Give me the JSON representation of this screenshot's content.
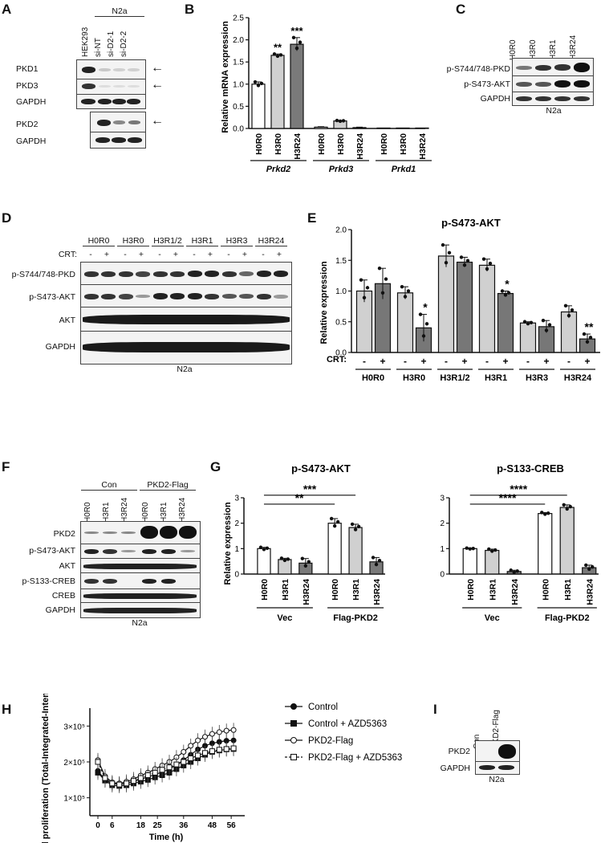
{
  "panels": {
    "A": {
      "label": "A",
      "group_header": "N2a",
      "lanes": [
        "HEK293",
        "si-NT",
        "si-D2-1",
        "si-D2-2"
      ],
      "rows": [
        "PKD1",
        "PKD3",
        "GAPDH",
        "PKD2",
        "GAPDH"
      ],
      "arrow": "←"
    },
    "B": {
      "label": "B",
      "ylabel": "Relative mRNA expression"
    },
    "C": {
      "label": "C",
      "lanes": [
        "H0R0",
        "H3R0",
        "H3R1",
        "H3R24"
      ],
      "rows": [
        "p-S744/748-PKD",
        "p-S473-AKT",
        "GAPDH"
      ],
      "caption": "N2a"
    },
    "D": {
      "label": "D",
      "lanes": [
        "H0R0",
        "H3R0",
        "H3R1/2",
        "H3R1",
        "H3R3",
        "H3R24"
      ],
      "crt_label": "CRT:",
      "signs": [
        "-",
        "+"
      ],
      "rows": [
        "p-S744/748-PKD",
        "p-S473-AKT",
        "AKT",
        "GAPDH"
      ],
      "caption": "N2a"
    },
    "E": {
      "label": "E",
      "title": "p-S473-AKT",
      "ylabel": "Relative expression",
      "crt_label": "CRT:"
    },
    "F": {
      "label": "F",
      "groups": [
        "Con",
        "PKD2-Flag"
      ],
      "lanes": [
        "H0R0",
        "H3R1",
        "H3R24",
        "H0R0",
        "H3R1",
        "H3R24"
      ],
      "rows": [
        "PKD2",
        "p-S473-AKT",
        "AKT",
        "p-S133-CREB",
        "CREB",
        "GAPDH"
      ],
      "caption": "N2a"
    },
    "G": {
      "label": "G",
      "ylabel": "Relative expression"
    },
    "H": {
      "label": "H",
      "ylabel": "Cell proliferation (Total-Integrated-Intensity)",
      "xlabel": "Time (h)"
    },
    "I": {
      "label": "I",
      "lanes": [
        "Con",
        "PKD2-Flag"
      ],
      "rows": [
        "PKD2",
        "GAPDH"
      ],
      "caption": "N2a"
    }
  },
  "chart_data": [
    {
      "panel": "B",
      "type": "bar",
      "ylabel": "Relative mRNA expression",
      "ylim": [
        0,
        2.5
      ],
      "yticks": [
        0.0,
        0.5,
        1.0,
        1.5,
        2.0,
        2.5
      ],
      "groups": [
        "Prkd2",
        "Prkd3",
        "Prkd1"
      ],
      "categories": [
        "H0R0",
        "H3R0",
        "H3R24",
        "H0R0",
        "H3R0",
        "H3R24",
        "H0R0",
        "H3R0",
        "H3R24"
      ],
      "values": [
        1.0,
        1.65,
        1.9,
        0.03,
        0.17,
        0.02,
        0.01,
        0.01,
        0.01
      ],
      "errors": [
        0.05,
        0.03,
        0.15,
        0.01,
        0.01,
        0.01,
        0.0,
        0.0,
        0.0
      ],
      "fills": [
        "#ffffff",
        "#d0d0d0",
        "#7a7a7a",
        "#ffffff",
        "#d0d0d0",
        "#7a7a7a",
        "#ffffff",
        "#d0d0d0",
        "#7a7a7a"
      ],
      "significance": [
        "",
        "**",
        "***",
        "",
        "",
        "",
        "",
        "",
        ""
      ]
    },
    {
      "panel": "E",
      "type": "bar",
      "title": "p-S473-AKT",
      "ylabel": "Relative expression",
      "ylim": [
        0,
        2.0
      ],
      "yticks": [
        0.0,
        0.5,
        1.0,
        1.5,
        2.0
      ],
      "groups": [
        "H0R0",
        "H3R0",
        "H3R1/2",
        "H3R1",
        "H3R3",
        "H3R24"
      ],
      "crt": [
        "-",
        "+"
      ],
      "values": [
        1.0,
        1.12,
        0.97,
        0.4,
        1.57,
        1.47,
        1.42,
        0.96,
        0.48,
        0.42,
        0.66,
        0.22
      ],
      "errors": [
        0.18,
        0.25,
        0.1,
        0.22,
        0.18,
        0.08,
        0.1,
        0.04,
        0.02,
        0.1,
        0.1,
        0.08
      ],
      "significance": [
        "",
        "",
        "",
        "*",
        "",
        "",
        "",
        "*",
        "",
        "",
        "",
        "**"
      ]
    },
    {
      "panel": "G1",
      "type": "bar",
      "title": "p-S473-AKT",
      "ylabel": "Relative expression",
      "ylim": [
        0,
        3
      ],
      "yticks": [
        0,
        1,
        2,
        3
      ],
      "categories": [
        "H0R0",
        "H3R1",
        "H3R24",
        "H0R0",
        "H3R1",
        "H3R24"
      ],
      "groups": [
        "Vec",
        "Flag-PKD2"
      ],
      "values": [
        1.0,
        0.57,
        0.43,
        2.0,
        1.83,
        0.48
      ],
      "errors": [
        0.05,
        0.05,
        0.18,
        0.18,
        0.13,
        0.17
      ],
      "fills": [
        "#ffffff",
        "#d0d0d0",
        "#7a7a7a",
        "#ffffff",
        "#d0d0d0",
        "#7a7a7a"
      ],
      "brackets": [
        {
          "from": 0,
          "to": 3,
          "label": "**"
        },
        {
          "from": 0,
          "to": 4,
          "label": "***"
        }
      ]
    },
    {
      "panel": "G2",
      "type": "bar",
      "title": "p-S133-CREB",
      "ylim": [
        0,
        3
      ],
      "yticks": [
        0,
        1,
        2,
        3
      ],
      "categories": [
        "H0R0",
        "H3R1",
        "H3R24",
        "H0R0",
        "H3R1",
        "H3R24"
      ],
      "groups": [
        "Vec",
        "Flag-PKD2"
      ],
      "values": [
        1.0,
        0.93,
        0.1,
        2.38,
        2.62,
        0.25
      ],
      "errors": [
        0.02,
        0.05,
        0.05,
        0.04,
        0.1,
        0.1
      ],
      "fills": [
        "#ffffff",
        "#d0d0d0",
        "#7a7a7a",
        "#ffffff",
        "#d0d0d0",
        "#7a7a7a"
      ],
      "brackets": [
        {
          "from": 0,
          "to": 3,
          "label": "****"
        },
        {
          "from": 0,
          "to": 4,
          "label": "****"
        }
      ]
    },
    {
      "panel": "H",
      "type": "line",
      "xlabel": "Time (h)",
      "ylabel": "Cell proliferation (Total-Integrated-Intensity)",
      "xticks": [
        0,
        6,
        18,
        25,
        36,
        48,
        56
      ],
      "xtick_labels": [
        "0",
        "6",
        "18",
        "25",
        "36",
        "48",
        "56"
      ],
      "yticks": [
        100000,
        200000,
        300000
      ],
      "ytick_labels": [
        "1×10⁵",
        "2×10⁵",
        "3×10⁵"
      ],
      "ylim": [
        50000,
        350000
      ],
      "x": [
        0,
        3,
        6,
        9,
        12,
        15,
        18,
        21,
        24,
        27,
        30,
        33,
        36,
        39,
        42,
        45,
        48,
        51,
        54,
        57
      ],
      "series": [
        {
          "name": "Control",
          "marker": "filled-circle",
          "values": [
            175000,
            150000,
            140000,
            138000,
            140000,
            145000,
            152000,
            158000,
            165000,
            172000,
            180000,
            192000,
            205000,
            220000,
            235000,
            245000,
            252000,
            256000,
            259000,
            260000
          ]
        },
        {
          "name": "Control + AZD5363",
          "marker": "filled-square",
          "values": [
            170000,
            148000,
            135000,
            133000,
            135000,
            140000,
            145000,
            150000,
            157000,
            163000,
            170000,
            180000,
            190000,
            200000,
            210000,
            220000,
            228000,
            232000,
            235000,
            236000
          ]
        },
        {
          "name": "PKD2-Flag",
          "marker": "open-circle",
          "values": [
            205000,
            160000,
            143000,
            140000,
            145000,
            152000,
            162000,
            170000,
            180000,
            190000,
            200000,
            213000,
            228000,
            245000,
            260000,
            270000,
            278000,
            283000,
            287000,
            289000
          ]
        },
        {
          "name": "PKD2-Flag + AZD5363",
          "marker": "open-square",
          "values": [
            200000,
            155000,
            140000,
            137000,
            140000,
            147000,
            155000,
            163000,
            170000,
            178000,
            185000,
            193000,
            200000,
            210000,
            218000,
            225000,
            230000,
            234000,
            236000,
            238000
          ]
        }
      ]
    }
  ]
}
